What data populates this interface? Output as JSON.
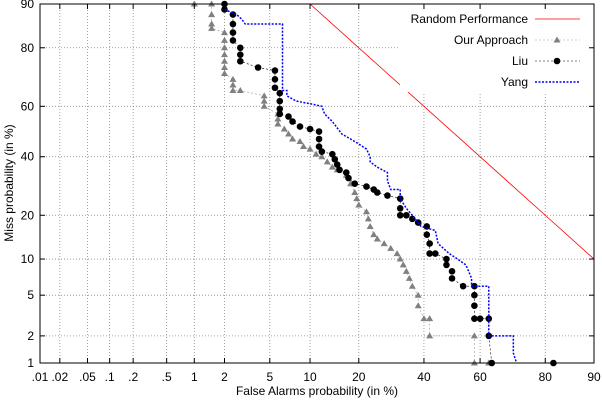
{
  "chart_data": {
    "type": "line",
    "scale": "normal-deviate (DET)",
    "xlabel": "False Alarms probability (in %)",
    "ylabel": "Miss probability (in %)",
    "xlim": [
      0.01,
      90
    ],
    "ylim": [
      1,
      90
    ],
    "x_ticks": [
      ".01",
      ".02",
      ".05",
      ".1",
      ".2",
      ".5",
      "1",
      "2",
      "5",
      "10",
      "20",
      "40",
      "60",
      "80",
      "90"
    ],
    "x_tick_values": [
      0.01,
      0.02,
      0.05,
      0.1,
      0.2,
      0.5,
      1,
      2,
      5,
      10,
      20,
      40,
      60,
      80,
      90
    ],
    "y_ticks": [
      "1",
      "2",
      "5",
      "10",
      "20",
      "40",
      "60",
      "80",
      "90"
    ],
    "y_tick_values": [
      1,
      2,
      5,
      10,
      20,
      40,
      60,
      80,
      90
    ],
    "grid": true,
    "legend_position": "top-right",
    "series": [
      {
        "name": "Random Performance",
        "style": "line",
        "color": "#ff0000",
        "points": [
          [
            10,
            90
          ],
          [
            20,
            80
          ],
          [
            40,
            60
          ],
          [
            60,
            40
          ],
          [
            80,
            20
          ],
          [
            90,
            10
          ]
        ]
      },
      {
        "name": "Our Approach",
        "style": "triangles",
        "color": "#808080",
        "points": [
          [
            1,
            90
          ],
          [
            1.5,
            90
          ],
          [
            1.5,
            88
          ],
          [
            1.5,
            86
          ],
          [
            1.5,
            85
          ],
          [
            2,
            84
          ],
          [
            2,
            82
          ],
          [
            2,
            80
          ],
          [
            2,
            78
          ],
          [
            2,
            76
          ],
          [
            2,
            74
          ],
          [
            2,
            72
          ],
          [
            2.4,
            70
          ],
          [
            2.4,
            68
          ],
          [
            2.4,
            66
          ],
          [
            2.8,
            66
          ],
          [
            4.5,
            64
          ],
          [
            4.5,
            62
          ],
          [
            4.5,
            60
          ],
          [
            5.8,
            57
          ],
          [
            5.8,
            55
          ],
          [
            5.8,
            53
          ],
          [
            6.5,
            51
          ],
          [
            7,
            49
          ],
          [
            7.5,
            47
          ],
          [
            8.5,
            46
          ],
          [
            9,
            44
          ],
          [
            10,
            43
          ],
          [
            11,
            41
          ],
          [
            12,
            40
          ],
          [
            13,
            38
          ],
          [
            14,
            36
          ],
          [
            15,
            35
          ],
          [
            17,
            33
          ],
          [
            18,
            30
          ],
          [
            19,
            27
          ],
          [
            19.5,
            25
          ],
          [
            20,
            23
          ],
          [
            22,
            21
          ],
          [
            22.5,
            19
          ],
          [
            23,
            17
          ],
          [
            24,
            15
          ],
          [
            25,
            14
          ],
          [
            27,
            13
          ],
          [
            29,
            12
          ],
          [
            31,
            11
          ],
          [
            32,
            10
          ],
          [
            33,
            9
          ],
          [
            34,
            8
          ],
          [
            35,
            7
          ],
          [
            36,
            6
          ],
          [
            38,
            5
          ],
          [
            38,
            4
          ],
          [
            40,
            3
          ],
          [
            42,
            3
          ],
          [
            42,
            2
          ],
          [
            58,
            2
          ],
          [
            58,
            1
          ],
          [
            63,
            1
          ]
        ]
      },
      {
        "name": "Liu",
        "style": "circles",
        "color": "#000000",
        "points": [
          [
            2,
            90
          ],
          [
            2,
            89
          ],
          [
            2.4,
            88
          ],
          [
            2.4,
            86
          ],
          [
            2.4,
            84
          ],
          [
            2.4,
            82
          ],
          [
            2.8,
            80
          ],
          [
            2.8,
            78
          ],
          [
            2.8,
            76
          ],
          [
            4,
            74
          ],
          [
            5.5,
            73
          ],
          [
            5.5,
            70
          ],
          [
            5.5,
            67
          ],
          [
            6,
            65
          ],
          [
            6,
            62
          ],
          [
            6,
            59
          ],
          [
            6,
            57
          ],
          [
            7,
            56
          ],
          [
            7.5,
            54
          ],
          [
            8.5,
            52
          ],
          [
            10,
            51
          ],
          [
            11.5,
            50
          ],
          [
            11.5,
            47
          ],
          [
            11.5,
            44
          ],
          [
            12,
            42
          ],
          [
            14,
            41
          ],
          [
            14.5,
            39
          ],
          [
            15,
            37
          ],
          [
            15.5,
            35
          ],
          [
            17,
            34
          ],
          [
            17.5,
            32
          ],
          [
            19,
            30
          ],
          [
            22,
            29
          ],
          [
            24,
            28
          ],
          [
            25,
            27
          ],
          [
            28,
            26
          ],
          [
            32,
            25
          ],
          [
            32,
            22
          ],
          [
            32,
            20
          ],
          [
            34,
            20
          ],
          [
            36,
            19
          ],
          [
            38,
            18
          ],
          [
            41,
            17
          ],
          [
            41,
            15
          ],
          [
            42,
            13
          ],
          [
            42,
            11
          ],
          [
            44,
            11
          ],
          [
            48,
            10
          ],
          [
            48,
            9
          ],
          [
            50,
            8
          ],
          [
            50,
            7
          ],
          [
            54,
            6
          ],
          [
            58,
            6
          ],
          [
            58,
            5
          ],
          [
            58,
            4
          ],
          [
            58,
            3
          ],
          [
            60,
            3
          ],
          [
            63,
            3
          ],
          [
            63,
            2
          ],
          [
            64,
            1
          ],
          [
            82,
            1
          ]
        ]
      },
      {
        "name": "Yang",
        "style": "dotted",
        "color": "#0000ff",
        "points": [
          [
            2,
            89
          ],
          [
            2.6,
            88
          ],
          [
            2.9,
            87
          ],
          [
            3.1,
            86
          ],
          [
            6.3,
            86
          ],
          [
            6.3,
            84
          ],
          [
            6.3,
            66
          ],
          [
            6.8,
            66
          ],
          [
            6.8,
            64
          ],
          [
            8,
            62
          ],
          [
            10,
            61
          ],
          [
            12,
            60
          ],
          [
            12.5,
            57
          ],
          [
            14,
            54
          ],
          [
            16,
            49
          ],
          [
            18,
            47
          ],
          [
            20,
            45
          ],
          [
            22,
            43
          ],
          [
            23,
            40
          ],
          [
            23,
            38
          ],
          [
            25,
            36
          ],
          [
            28,
            34
          ],
          [
            28,
            31
          ],
          [
            29,
            28
          ],
          [
            32,
            28
          ],
          [
            32,
            25
          ],
          [
            34,
            22
          ],
          [
            36,
            20
          ],
          [
            39,
            17
          ],
          [
            44,
            16
          ],
          [
            45,
            13
          ],
          [
            49,
            11
          ],
          [
            52,
            10
          ],
          [
            55,
            9
          ],
          [
            57,
            7
          ],
          [
            57,
            6
          ],
          [
            63,
            6
          ],
          [
            63,
            2
          ],
          [
            71,
            2
          ],
          [
            71,
            1.3
          ],
          [
            72,
            1
          ]
        ]
      }
    ]
  }
}
